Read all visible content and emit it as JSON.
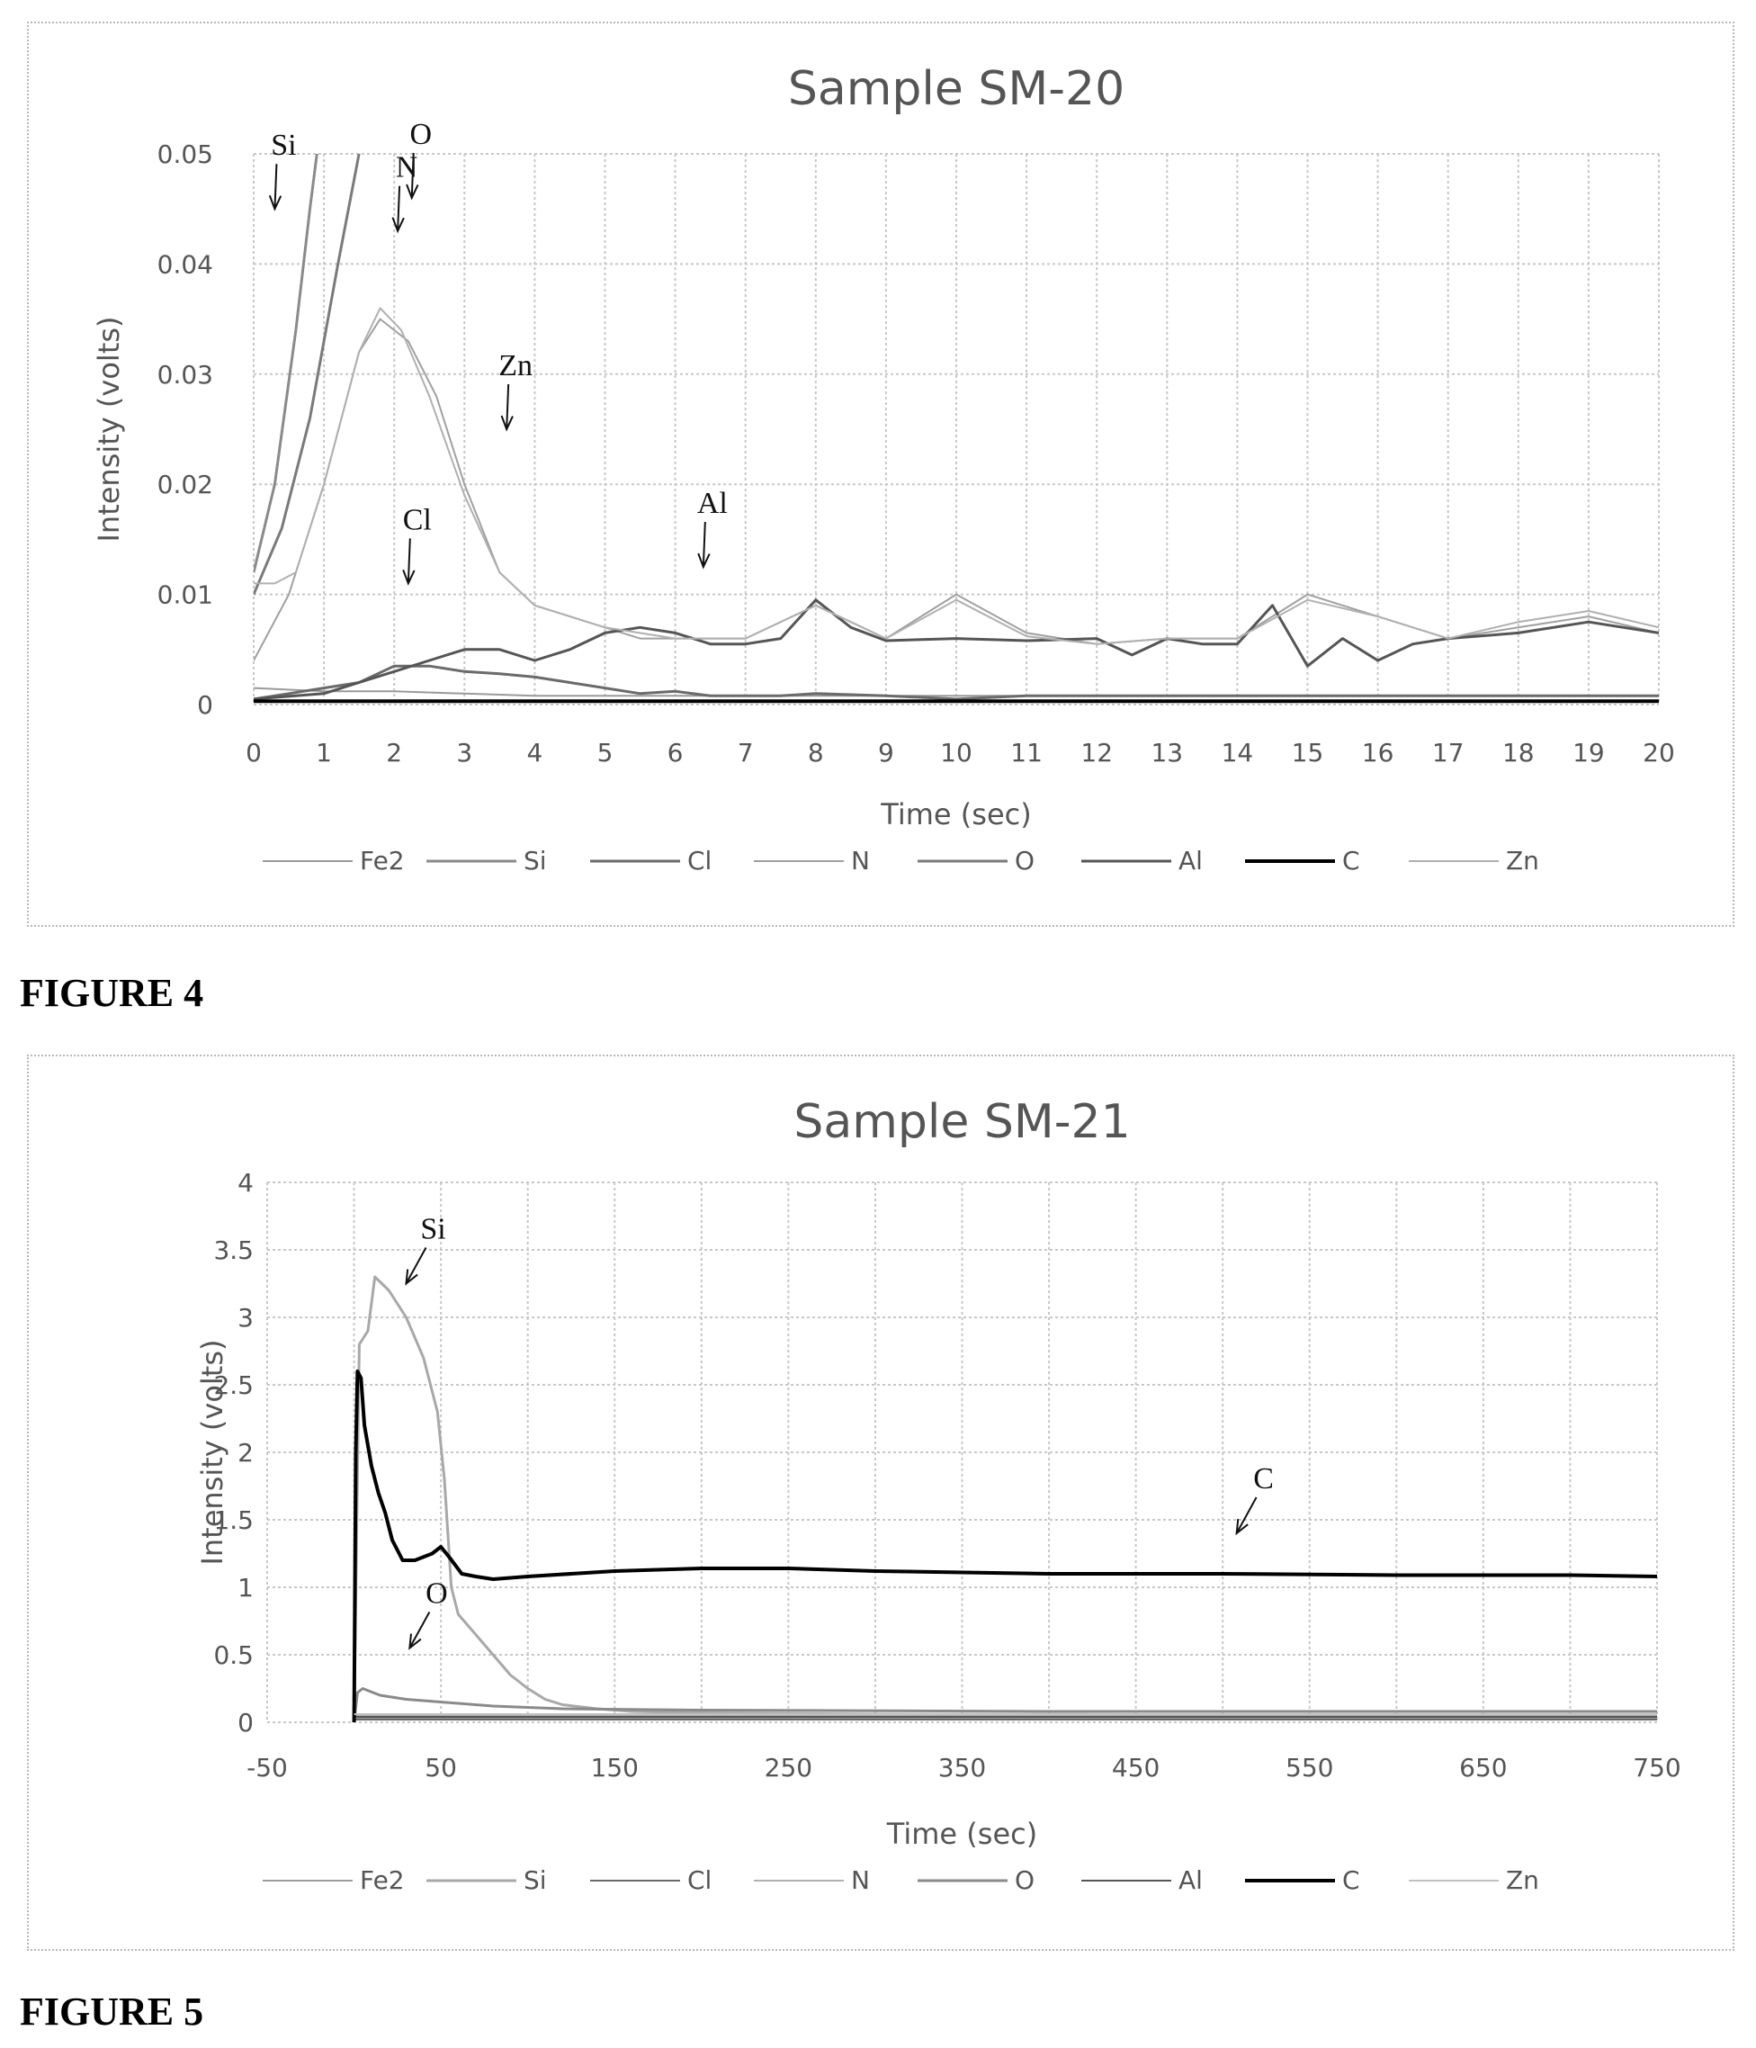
{
  "figures": [
    {
      "label": "FIGURE 4"
    },
    {
      "label": "FIGURE 5"
    }
  ],
  "legend_entries": [
    "Fe2",
    "Si",
    "Cl",
    "N",
    "O",
    "Al",
    "C",
    "Zn"
  ],
  "chart_data": [
    {
      "type": "line",
      "title": "Sample SM-20",
      "xlabel": "Time (sec)",
      "ylabel": "Intensity (volts)",
      "xlim": [
        0,
        20
      ],
      "ylim": [
        0,
        0.05
      ],
      "x_ticks": [
        "0",
        "1",
        "2",
        "3",
        "4",
        "5",
        "6",
        "7",
        "8",
        "9",
        "10",
        "11",
        "12",
        "13",
        "14",
        "15",
        "16",
        "17",
        "18",
        "19",
        "20"
      ],
      "y_ticks": [
        "0",
        "0.01",
        "0.02",
        "0.03",
        "0.04",
        "0.05"
      ],
      "grid": true,
      "legend_position": "bottom",
      "series": [
        {
          "name": "Fe2",
          "color": "#9a9a9a",
          "width": 2,
          "x": [
            0,
            1,
            2,
            3,
            4,
            5,
            6,
            7,
            8,
            9,
            10,
            11,
            12,
            13,
            14,
            15,
            16,
            17,
            18,
            19,
            20
          ],
          "y": [
            0.0015,
            0.0012,
            0.0012,
            0.001,
            0.0008,
            0.0008,
            0.0008,
            0.0008,
            0.0008,
            0.0008,
            0.0008,
            0.0008,
            0.0008,
            0.0008,
            0.0008,
            0.0008,
            0.0008,
            0.0008,
            0.0008,
            0.0008,
            0.0008
          ]
        },
        {
          "name": "Si",
          "color": "#8a8a8a",
          "width": 3,
          "x": [
            0,
            0.3,
            0.6,
            0.8,
            1.0
          ],
          "y": [
            0.012,
            0.02,
            0.034,
            0.045,
            0.055
          ]
        },
        {
          "name": "Cl",
          "color": "#6a6a6a",
          "width": 3,
          "x": [
            0,
            0.5,
            1,
            1.5,
            2,
            2.5,
            3,
            3.5,
            4,
            4.5,
            5,
            5.5,
            6,
            6.5,
            7,
            7.5,
            8,
            9,
            10,
            11,
            12,
            13,
            14,
            15,
            16,
            17,
            18,
            19,
            20
          ],
          "y": [
            0.0005,
            0.001,
            0.0015,
            0.002,
            0.0035,
            0.0035,
            0.003,
            0.0028,
            0.0025,
            0.002,
            0.0015,
            0.001,
            0.0012,
            0.0008,
            0.0008,
            0.0008,
            0.001,
            0.0008,
            0.0005,
            0.0008,
            0.0008,
            0.0008,
            0.0008,
            0.0008,
            0.0008,
            0.0008,
            0.0008,
            0.0008,
            0.0008
          ]
        },
        {
          "name": "N",
          "color": "#a0a0a0",
          "width": 2,
          "x": [
            0,
            0.5,
            1,
            1.5,
            1.8,
            2.2,
            2.6,
            3,
            3.5,
            4,
            4.5,
            5,
            5.5,
            6,
            7,
            8,
            9,
            10,
            11,
            12,
            13,
            14,
            15,
            16,
            17,
            18,
            19,
            20
          ],
          "y": [
            0.004,
            0.01,
            0.02,
            0.032,
            0.035,
            0.033,
            0.028,
            0.02,
            0.012,
            0.009,
            0.008,
            0.007,
            0.006,
            0.006,
            0.006,
            0.009,
            0.006,
            0.01,
            0.0065,
            0.0055,
            0.006,
            0.006,
            0.01,
            0.008,
            0.006,
            0.007,
            0.008,
            0.0065
          ]
        },
        {
          "name": "O",
          "color": "#7a7a7a",
          "width": 3,
          "x": [
            0,
            0.4,
            0.8,
            1.2,
            1.5,
            1.7
          ],
          "y": [
            0.01,
            0.016,
            0.026,
            0.04,
            0.05,
            0.056
          ]
        },
        {
          "name": "Al",
          "color": "#555555",
          "width": 3,
          "x": [
            0,
            1,
            1.5,
            2,
            2.5,
            3,
            3.5,
            4,
            4.5,
            5,
            5.5,
            6,
            6.5,
            7,
            7.5,
            8,
            8.5,
            9,
            10,
            11,
            12,
            12.5,
            13,
            13.5,
            14,
            14.5,
            15,
            15.5,
            16,
            16.5,
            17,
            18,
            19,
            20
          ],
          "y": [
            0.0005,
            0.001,
            0.002,
            0.003,
            0.004,
            0.005,
            0.005,
            0.004,
            0.005,
            0.0065,
            0.007,
            0.0065,
            0.0055,
            0.0055,
            0.006,
            0.0095,
            0.007,
            0.0058,
            0.006,
            0.0058,
            0.006,
            0.0045,
            0.006,
            0.0055,
            0.0055,
            0.009,
            0.0035,
            0.006,
            0.004,
            0.0055,
            0.006,
            0.0065,
            0.0075,
            0.0065
          ]
        },
        {
          "name": "C",
          "color": "#000000",
          "width": 4,
          "x": [
            0,
            20
          ],
          "y": [
            0.0003,
            0.0003
          ]
        },
        {
          "name": "Zn",
          "color": "#b0b0b0",
          "width": 2,
          "x": [
            0,
            0.3,
            0.6,
            1,
            1.5,
            1.8,
            2.1,
            2.5,
            3,
            3.5,
            4,
            5,
            6,
            7,
            8,
            9,
            10,
            11,
            12,
            13,
            14,
            15,
            16,
            17,
            18,
            19,
            20
          ],
          "y": [
            0.011,
            0.011,
            0.012,
            0.02,
            0.032,
            0.036,
            0.034,
            0.028,
            0.019,
            0.012,
            0.009,
            0.007,
            0.006,
            0.006,
            0.009,
            0.006,
            0.0095,
            0.0062,
            0.0055,
            0.006,
            0.006,
            0.0095,
            0.008,
            0.006,
            0.0075,
            0.0085,
            0.007
          ]
        }
      ],
      "annotations": [
        {
          "text": "Si",
          "x": 0.3,
          "y": 0.045
        },
        {
          "text": "O",
          "x": 2.25,
          "y": 0.046
        },
        {
          "text": "N",
          "x": 2.05,
          "y": 0.043
        },
        {
          "text": "Zn",
          "x": 3.6,
          "y": 0.025
        },
        {
          "text": "Cl",
          "x": 2.2,
          "y": 0.011
        },
        {
          "text": "Al",
          "x": 6.4,
          "y": 0.0125
        }
      ]
    },
    {
      "type": "line",
      "title": "Sample SM-21",
      "xlabel": "Time (sec)",
      "ylabel": "Intensity (volts)",
      "xlim": [
        -50,
        750
      ],
      "ylim": [
        0,
        4
      ],
      "x_ticks": [
        "-50",
        "50",
        "150",
        "250",
        "350",
        "450",
        "550",
        "650",
        "750"
      ],
      "y_ticks": [
        "0",
        "0.5",
        "1",
        "1.5",
        "2",
        "2.5",
        "3",
        "3.5",
        "4"
      ],
      "grid": true,
      "legend_position": "bottom",
      "series": [
        {
          "name": "Fe2",
          "color": "#9a9a9a",
          "width": 2,
          "x": [
            0,
            750
          ],
          "y": [
            0.03,
            0.03
          ]
        },
        {
          "name": "Si",
          "color": "#a8a8a8",
          "width": 3,
          "x": [
            0,
            3,
            8,
            12,
            20,
            30,
            40,
            48,
            52,
            56,
            60,
            70,
            80,
            90,
            100,
            110,
            120,
            140,
            160,
            200,
            300,
            750
          ],
          "y": [
            0,
            2.8,
            2.9,
            3.3,
            3.2,
            3.0,
            2.7,
            2.3,
            1.8,
            1.0,
            0.8,
            0.65,
            0.5,
            0.35,
            0.25,
            0.17,
            0.13,
            0.1,
            0.08,
            0.07,
            0.06,
            0.05
          ]
        },
        {
          "name": "Cl",
          "color": "#6a6a6a",
          "width": 2,
          "x": [
            0,
            750
          ],
          "y": [
            0.02,
            0.02
          ]
        },
        {
          "name": "N",
          "color": "#b0b0b0",
          "width": 2,
          "x": [
            0,
            750
          ],
          "y": [
            0.05,
            0.05
          ]
        },
        {
          "name": "O",
          "color": "#8a8a8a",
          "width": 3,
          "x": [
            0,
            2,
            5,
            15,
            30,
            50,
            80,
            120,
            200,
            400,
            750
          ],
          "y": [
            0,
            0.22,
            0.25,
            0.2,
            0.17,
            0.15,
            0.12,
            0.1,
            0.09,
            0.08,
            0.08
          ]
        },
        {
          "name": "Al",
          "color": "#555555",
          "width": 2,
          "x": [
            0,
            750
          ],
          "y": [
            0.04,
            0.04
          ]
        },
        {
          "name": "C",
          "color": "#000000",
          "width": 4,
          "x": [
            0,
            1,
            2,
            4,
            6,
            10,
            14,
            18,
            22,
            28,
            35,
            45,
            50,
            55,
            62,
            70,
            80,
            100,
            150,
            200,
            250,
            300,
            400,
            500,
            600,
            700,
            750
          ],
          "y": [
            0,
            2.0,
            2.6,
            2.55,
            2.2,
            1.9,
            1.7,
            1.55,
            1.35,
            1.2,
            1.2,
            1.25,
            1.3,
            1.22,
            1.1,
            1.08,
            1.06,
            1.08,
            1.12,
            1.14,
            1.14,
            1.12,
            1.1,
            1.1,
            1.09,
            1.09,
            1.08
          ]
        },
        {
          "name": "Zn",
          "color": "#c0c0c0",
          "width": 2,
          "x": [
            0,
            750
          ],
          "y": [
            0.06,
            0.06
          ]
        }
      ],
      "annotations": [
        {
          "text": "Si",
          "x": 30,
          "y": 3.25
        },
        {
          "text": "C",
          "x": 508,
          "y": 1.4
        },
        {
          "text": "O",
          "x": 32,
          "y": 0.55
        }
      ]
    }
  ]
}
